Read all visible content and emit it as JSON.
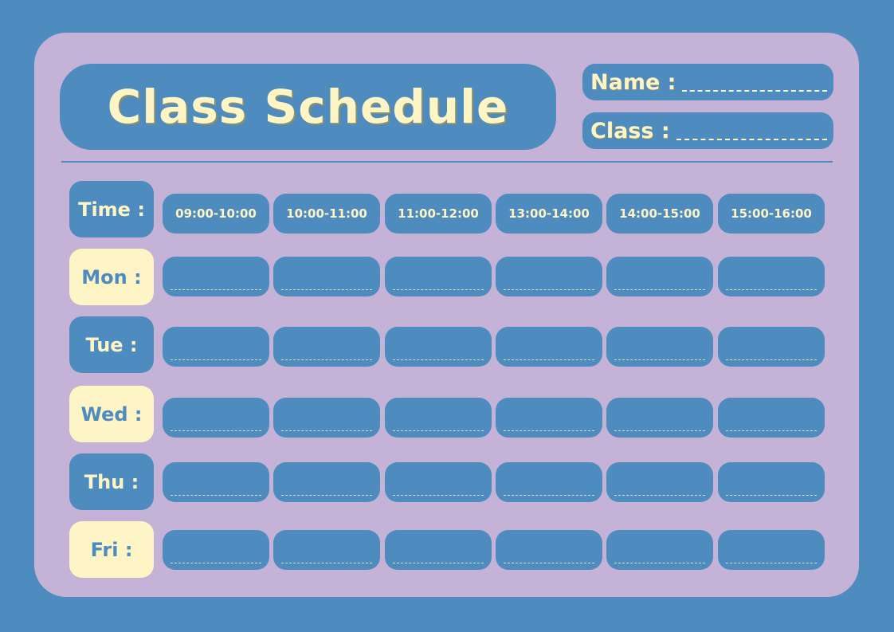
{
  "title": "Class Schedule",
  "fields": {
    "name_label": "Name :",
    "class_label": "Class :"
  },
  "time_label": "Time :",
  "times": [
    "09:00-10:00",
    "10:00-11:00",
    "11:00-12:00",
    "13:00-14:00",
    "14:00-15:00",
    "15:00-16:00"
  ],
  "days": [
    "Mon :",
    "Tue :",
    "Wed :",
    "Thu :",
    "Fri :"
  ],
  "colors": {
    "background": "#4E8BBF",
    "card": "#C4B3D6",
    "accent": "#FDF5C5"
  }
}
